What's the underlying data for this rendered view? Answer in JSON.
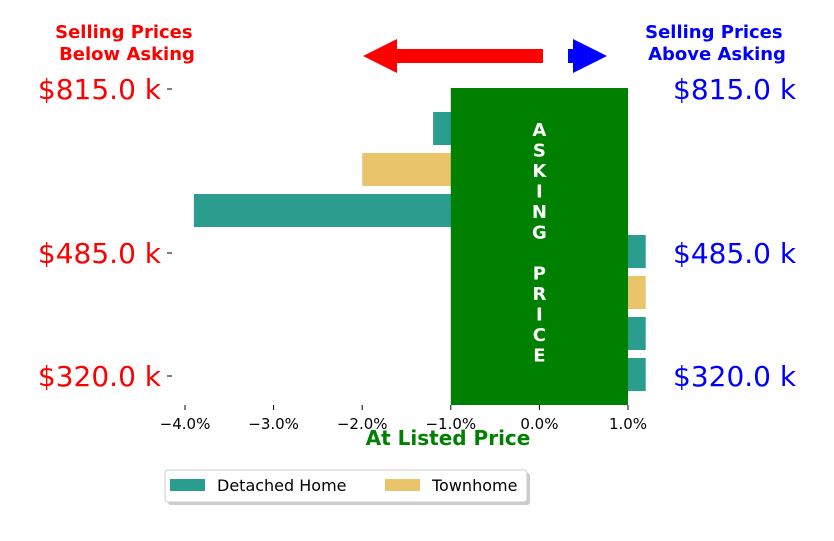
{
  "chart_data": {
    "type": "bar",
    "orientation": "horizontal",
    "xlim": [
      -0.045,
      0.012
    ],
    "x_ticks": [
      "−4.0%",
      "−3.0%",
      "−2.0%",
      "−1.0%",
      "0.0%",
      "1.0%"
    ],
    "x_tick_values": [
      -0.04,
      -0.03,
      -0.02,
      -0.01,
      0.0,
      0.01
    ],
    "xlabel": "At Listed Price",
    "left_header": [
      "Selling Prices",
      "Below Asking"
    ],
    "right_header": [
      "Selling Prices",
      "Above Asking"
    ],
    "price_labels": [
      {
        "label": "$815.0 k",
        "row": 0
      },
      {
        "label": "$485.0 k",
        "row": 4
      },
      {
        "label": "$320.0 k",
        "row": 7
      }
    ],
    "asking_band": {
      "from": -0.01,
      "to": 0.01,
      "text": [
        "A",
        "S",
        "K",
        "I",
        "N",
        "G",
        "",
        "P",
        "R",
        "I",
        "C",
        "E"
      ]
    },
    "rows": [
      {
        "series": "Detached Home",
        "value": -0.012
      },
      {
        "series": "Townhome",
        "value": -0.02
      },
      {
        "series": "Detached Home",
        "value": -0.039
      },
      {
        "series": "Detached Home",
        "value": 0.012
      },
      {
        "series": "Townhome",
        "value": 0.012
      },
      {
        "series": "Detached Home",
        "value": 0.012
      },
      {
        "series": "Detached Home",
        "value": 0.012
      }
    ],
    "series": [
      {
        "name": "Detached Home",
        "color": "#2a9d8f"
      },
      {
        "name": "Townhome",
        "color": "#e9c46a"
      }
    ],
    "colors": {
      "below": "#ff0000",
      "above": "#0000ff",
      "asking": "#008000"
    },
    "legend_position": "bottom"
  }
}
